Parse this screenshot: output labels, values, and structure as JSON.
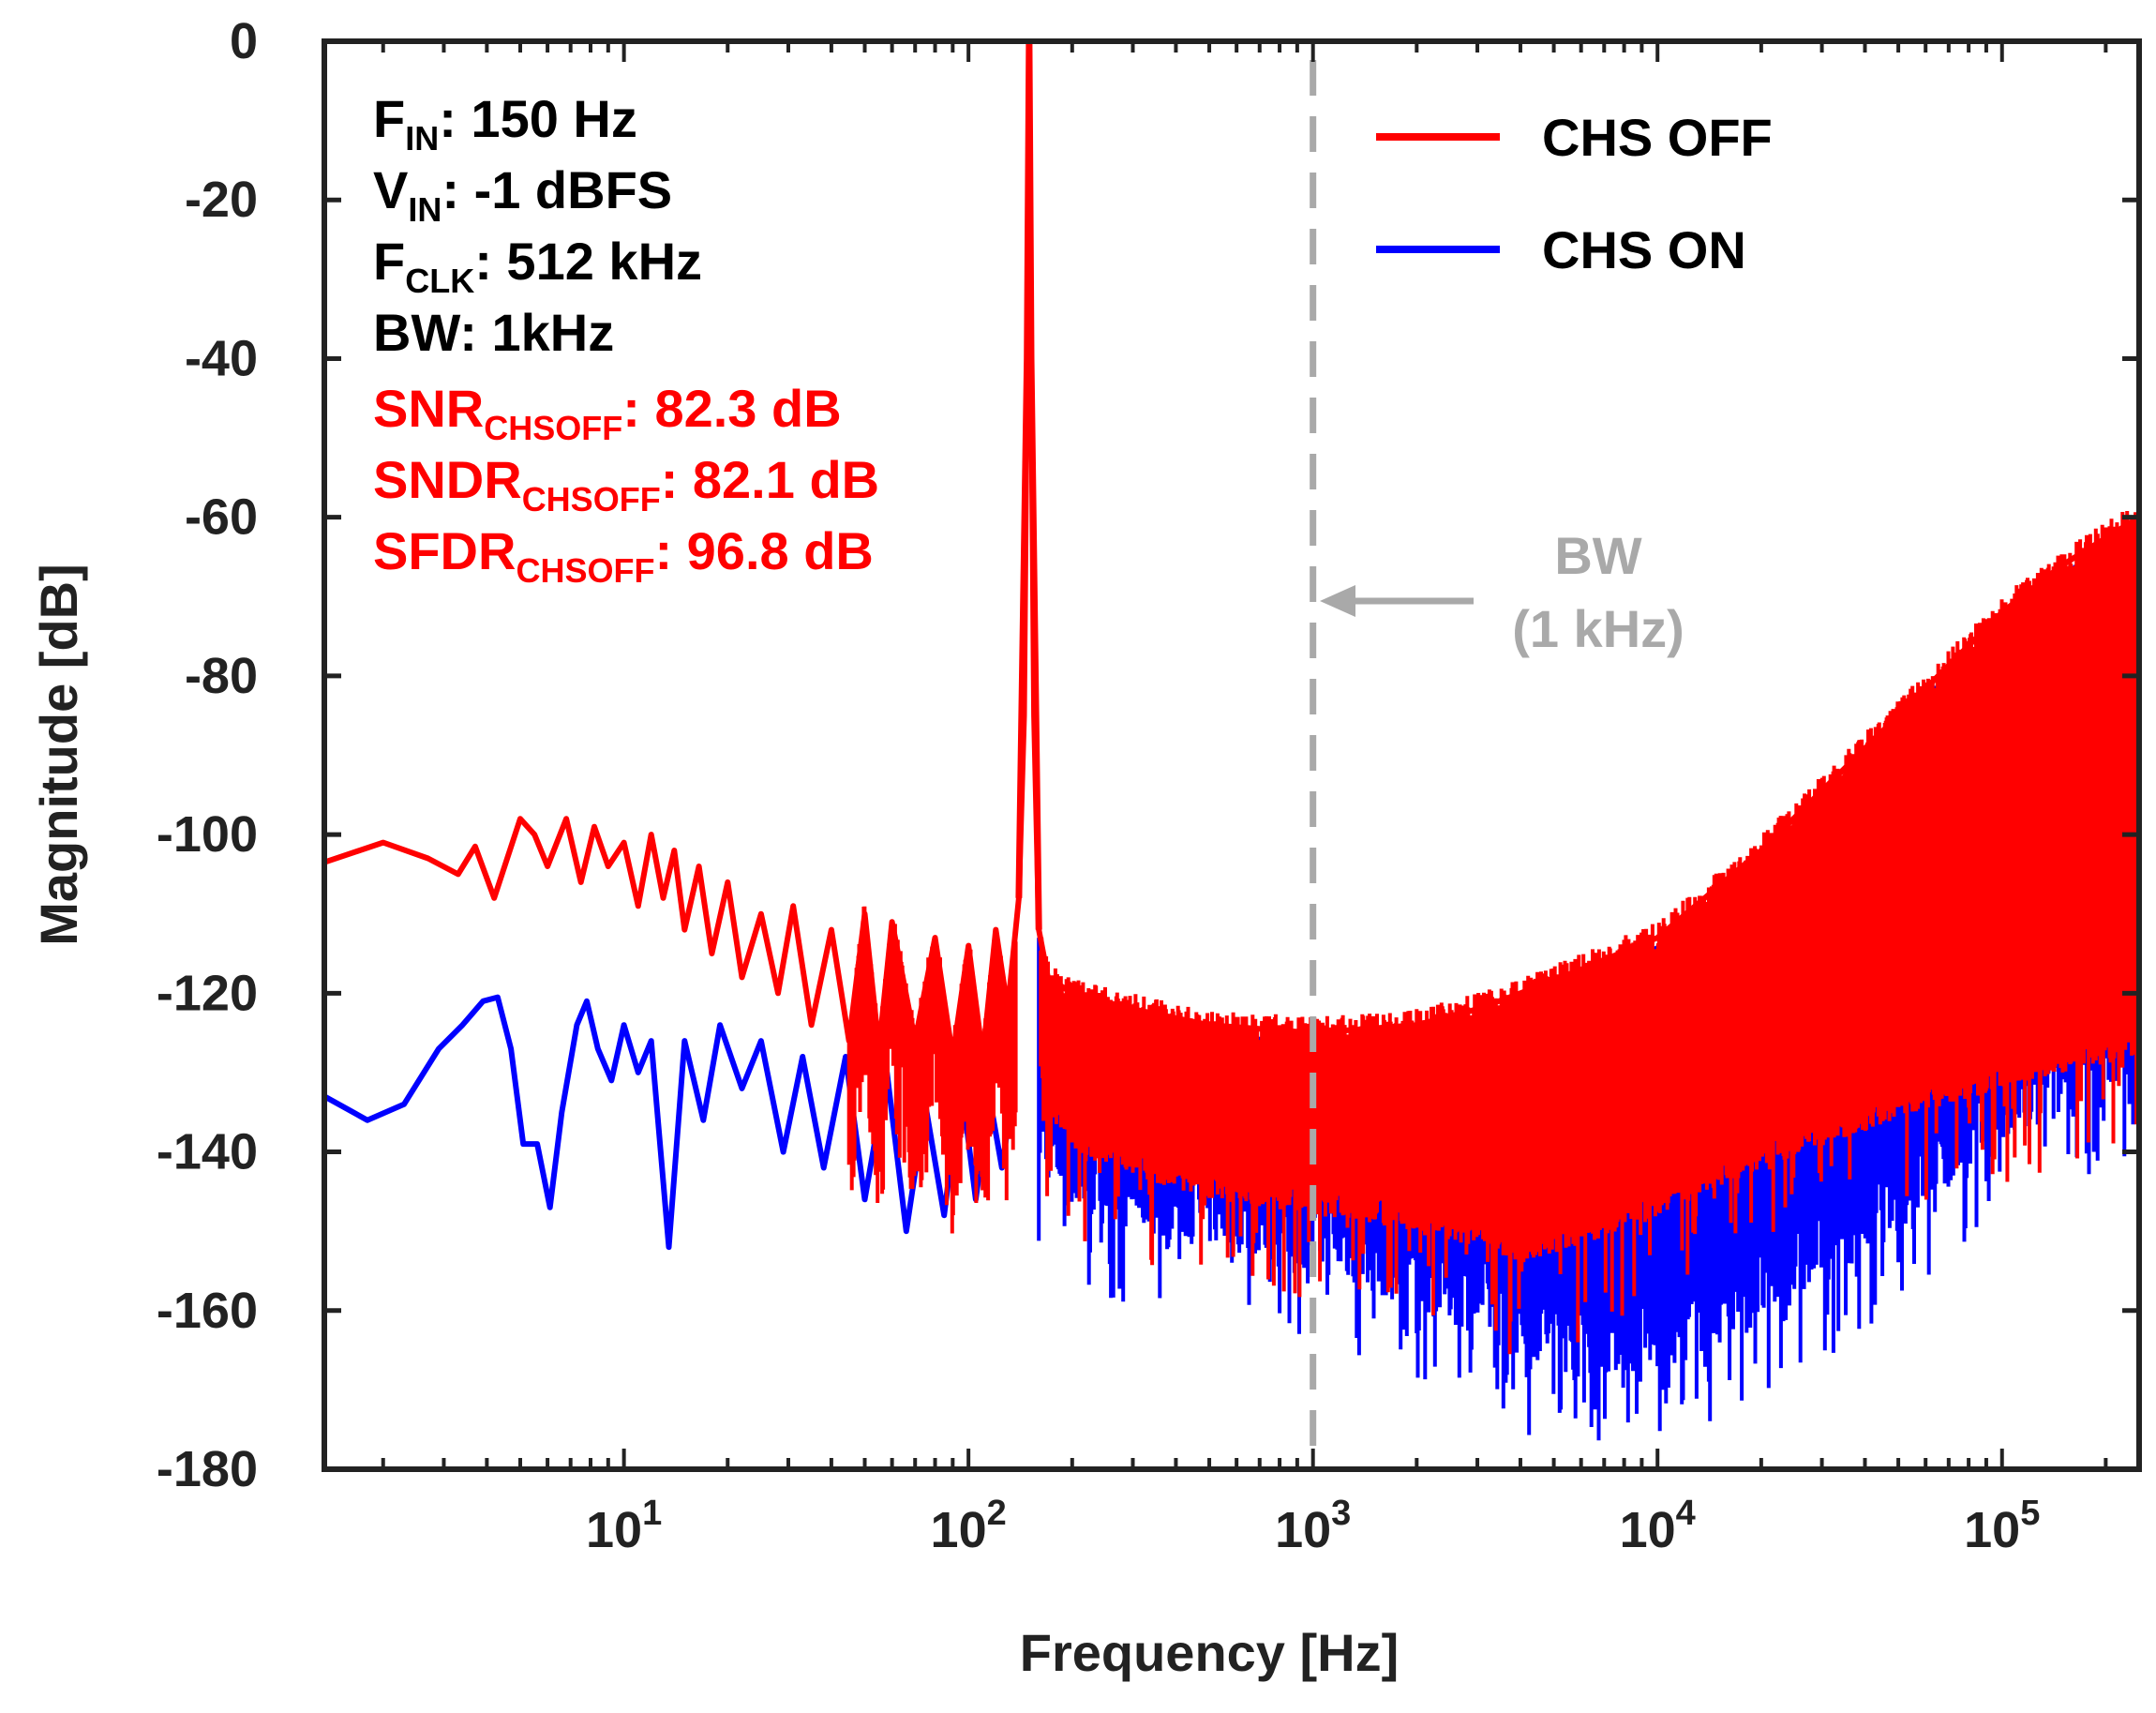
{
  "chart_data": {
    "type": "line",
    "title": "",
    "xlabel": "Frequency [Hz]",
    "ylabel": "Magnitude [dB]",
    "xscale": "log",
    "xlim": [
      1.35,
      250000
    ],
    "ylim": [
      -180,
      0
    ],
    "grid": false,
    "legend_position": "top-right",
    "x_ticks": [
      {
        "value": 10,
        "base": "10",
        "exp": "1"
      },
      {
        "value": 100,
        "base": "10",
        "exp": "2"
      },
      {
        "value": 1000,
        "base": "10",
        "exp": "3"
      },
      {
        "value": 10000,
        "base": "10",
        "exp": "4"
      },
      {
        "value": 100000,
        "base": "10",
        "exp": "5"
      }
    ],
    "y_ticks": [
      {
        "value": 0,
        "label": "0"
      },
      {
        "value": -20,
        "label": "-20"
      },
      {
        "value": -40,
        "label": "-40"
      },
      {
        "value": -60,
        "label": "-60"
      },
      {
        "value": -80,
        "label": "-80"
      },
      {
        "value": -100,
        "label": "-100"
      },
      {
        "value": -120,
        "label": "-120"
      },
      {
        "value": -140,
        "label": "-140"
      },
      {
        "value": -160,
        "label": "-160"
      },
      {
        "value": -180,
        "label": "-180"
      }
    ],
    "series": [
      {
        "name": "CHS OFF",
        "color": "#ff0000",
        "x": [
          1.35,
          2,
          2.7,
          3.3,
          3.7,
          4.2,
          5,
          5.5,
          6,
          6.8,
          7.5,
          8.2,
          9,
          10,
          11,
          12,
          13,
          14,
          15,
          16.5,
          18,
          20,
          22,
          25,
          28,
          31,
          35,
          40,
          45,
          50,
          55,
          60,
          70,
          80,
          90,
          100,
          110,
          120,
          130,
          140,
          145,
          148,
          150,
          152,
          155,
          160,
          170,
          200,
          300,
          500,
          1000,
          2000,
          3000,
          4000,
          6000,
          10000,
          20000,
          50000,
          100000,
          150000,
          250000
        ],
        "y": [
          -103.5,
          -101,
          -103,
          -105,
          -101.5,
          -108,
          -98,
          -100,
          -104,
          -98,
          -106,
          -99,
          -104,
          -101,
          -109,
          -100,
          -108,
          -102,
          -112,
          -104,
          -115,
          -106,
          -118,
          -110,
          -120,
          -109,
          -124,
          -112,
          -126,
          -110,
          -127,
          -111,
          -126,
          -113,
          -128,
          -114,
          -128,
          -112,
          -122,
          -108,
          -85,
          -40,
          0,
          -40,
          -85,
          -112,
          -118,
          -120,
          -122,
          -124,
          -125,
          -124,
          -122,
          -120,
          -117,
          -113,
          -102,
          -85,
          -72,
          -66,
          -60
        ],
        "y_lower": [
          -103.5,
          -101,
          -103,
          -105,
          -101.5,
          -108,
          -98,
          -100,
          -104,
          -98,
          -106,
          -99,
          -104,
          -101,
          -109,
          -100,
          -108,
          -102,
          -112,
          -104,
          -115,
          -106,
          -118,
          -110,
          -120,
          -109,
          -124,
          -112,
          -126,
          -110,
          -127,
          -111,
          -126,
          -113,
          -128,
          -114,
          -128,
          -112,
          -122,
          -108,
          -85,
          -40,
          0,
          -40,
          -85,
          -128,
          -135,
          -140,
          -143,
          -146,
          -148,
          -150,
          -152,
          -154,
          -152,
          -148,
          -142,
          -136,
          -132,
          -130,
          -128
        ]
      },
      {
        "name": "CHS ON",
        "color": "#0000ff",
        "x": [
          1.35,
          1.8,
          2.3,
          2.9,
          3.4,
          3.9,
          4.3,
          4.7,
          5.1,
          5.6,
          6.1,
          6.6,
          7.3,
          7.8,
          8.4,
          9.2,
          10,
          11,
          12,
          13.5,
          15,
          17,
          19,
          22,
          25,
          29,
          33,
          38,
          44,
          50,
          58,
          66,
          75,
          85,
          95,
          105,
          115,
          125,
          135
        ],
        "y": [
          -133,
          -136,
          -134,
          -127,
          -124,
          -121,
          -120.5,
          -127,
          -139,
          -139,
          -147,
          -135,
          -124,
          -121,
          -127,
          -131,
          -124,
          -130,
          -126,
          -152,
          -126,
          -136,
          -124,
          -132,
          -126,
          -140,
          -128,
          -142,
          -128,
          -146,
          -130,
          -150,
          -134,
          -148,
          -131,
          -146,
          -133,
          -142,
          -132
        ],
        "y_lower": [
          -133,
          -136,
          -134,
          -127,
          -124,
          -121,
          -120.5,
          -127,
          -139,
          -139,
          -147,
          -135,
          -124,
          -121,
          -127,
          -131,
          -124,
          -130,
          -126,
          -152,
          -126,
          -136,
          -124,
          -132,
          -126,
          -140,
          -128,
          -142,
          -128,
          -146,
          -130,
          -150,
          -134,
          -148,
          -131,
          -146,
          -133,
          -142,
          -132
        ],
        "band_x": [
          160,
          200,
          300,
          500,
          1000,
          2000,
          3000,
          4000,
          6000,
          10000,
          20000,
          50000,
          100000,
          150000,
          250000
        ],
        "band_lower": [
          -142,
          -148,
          -150,
          -152,
          -155,
          -160,
          -163,
          -166,
          -168,
          -168,
          -162,
          -150,
          -140,
          -136,
          -130
        ]
      }
    ],
    "marker_line": {
      "x": 1000,
      "color": "#a9a9a9",
      "style": "dashed"
    },
    "annotation": {
      "line1": "BW",
      "line2": "(1 kHz)",
      "color": "#a9a9a9"
    },
    "info_black": [
      {
        "main": "F",
        "sub": "IN",
        "rest": ": 150 Hz"
      },
      {
        "main": "V",
        "sub": "IN",
        "rest": ": -1 dBFS"
      },
      {
        "main": "F",
        "sub": "CLK",
        "rest": ": 512 kHz"
      },
      {
        "main": "BW: 1kHz",
        "sub": "",
        "rest": ""
      }
    ],
    "info_red": [
      {
        "main": "SNR",
        "sub": "CHSOFF",
        "rest": ": 82.3 dB"
      },
      {
        "main": "SNDR",
        "sub": "CHSOFF",
        "rest": ": 82.1 dB"
      },
      {
        "main": "SFDR",
        "sub": "CHSOFF",
        "rest": ": 96.8 dB"
      }
    ]
  }
}
